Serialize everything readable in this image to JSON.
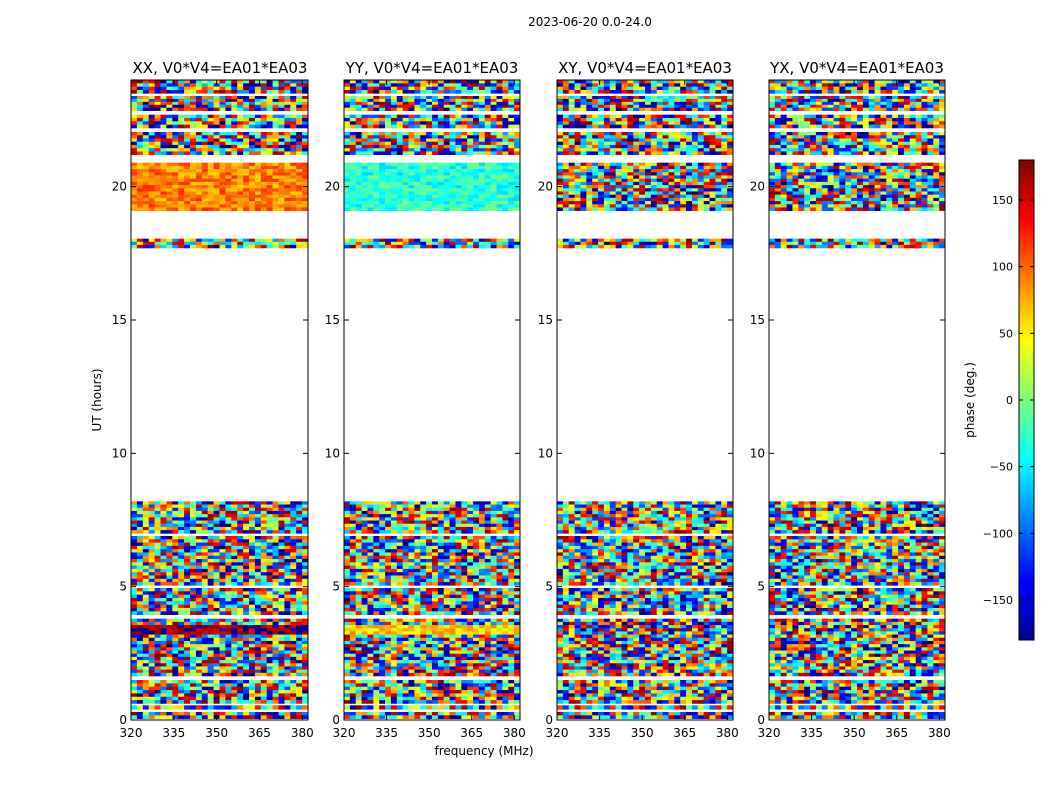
{
  "chart_data": {
    "type": "heatmap",
    "suptitle": "2023-06-20 0.0-24.0",
    "panels": [
      {
        "title": "XX, V0*V4=EA01*EA03",
        "pol": "XX"
      },
      {
        "title": "YY, V0*V4=EA01*EA03",
        "pol": "YY"
      },
      {
        "title": "XY, V0*V4=EA01*EA03",
        "pol": "XY"
      },
      {
        "title": "YX, V0*V4=EA01*EA03",
        "pol": "YX"
      }
    ],
    "x_axis": {
      "label": "frequency (MHz)",
      "range": [
        320,
        382
      ],
      "ticks": [
        320,
        335,
        350,
        365,
        380
      ],
      "tick_labels": [
        "320",
        "335",
        "350",
        "365",
        "380"
      ]
    },
    "y_axis": {
      "label": "UT (hours)",
      "range": [
        0,
        24
      ],
      "ticks": [
        0,
        5,
        10,
        15,
        20
      ],
      "tick_labels": [
        "0",
        "5",
        "10",
        "15",
        "20"
      ]
    },
    "colorbar": {
      "label": "phase (deg.)",
      "range": [
        -180,
        180
      ],
      "ticks": [
        -150,
        -100,
        -50,
        0,
        50,
        100,
        150
      ],
      "tick_labels": [
        "−150",
        "−100",
        "−50",
        "0",
        "50",
        "100",
        "150"
      ],
      "colormap": "jet"
    },
    "data_coverage_hours": [
      [
        0.05,
        0.3
      ],
      [
        0.4,
        0.55
      ],
      [
        0.62,
        1.5
      ],
      [
        1.65,
        3.8
      ],
      [
        3.95,
        4.95
      ],
      [
        5.05,
        6.9
      ],
      [
        7.0,
        8.2
      ],
      [
        17.7,
        18.05
      ],
      [
        19.1,
        20.9
      ],
      [
        21.2,
        22.05
      ],
      [
        22.2,
        22.7
      ],
      [
        22.85,
        23.4
      ],
      [
        23.5,
        24.0
      ]
    ],
    "parallel_hand_features": {
      "XX": [
        {
          "t": [
            3.2,
            3.55
          ],
          "phase": 170
        },
        {
          "t": [
            19.1,
            20.9
          ],
          "phase": 90
        }
      ],
      "YY": [
        {
          "t": [
            3.2,
            3.55
          ],
          "phase": 60
        },
        {
          "t": [
            19.1,
            20.9
          ],
          "phase": -30
        }
      ]
    }
  }
}
